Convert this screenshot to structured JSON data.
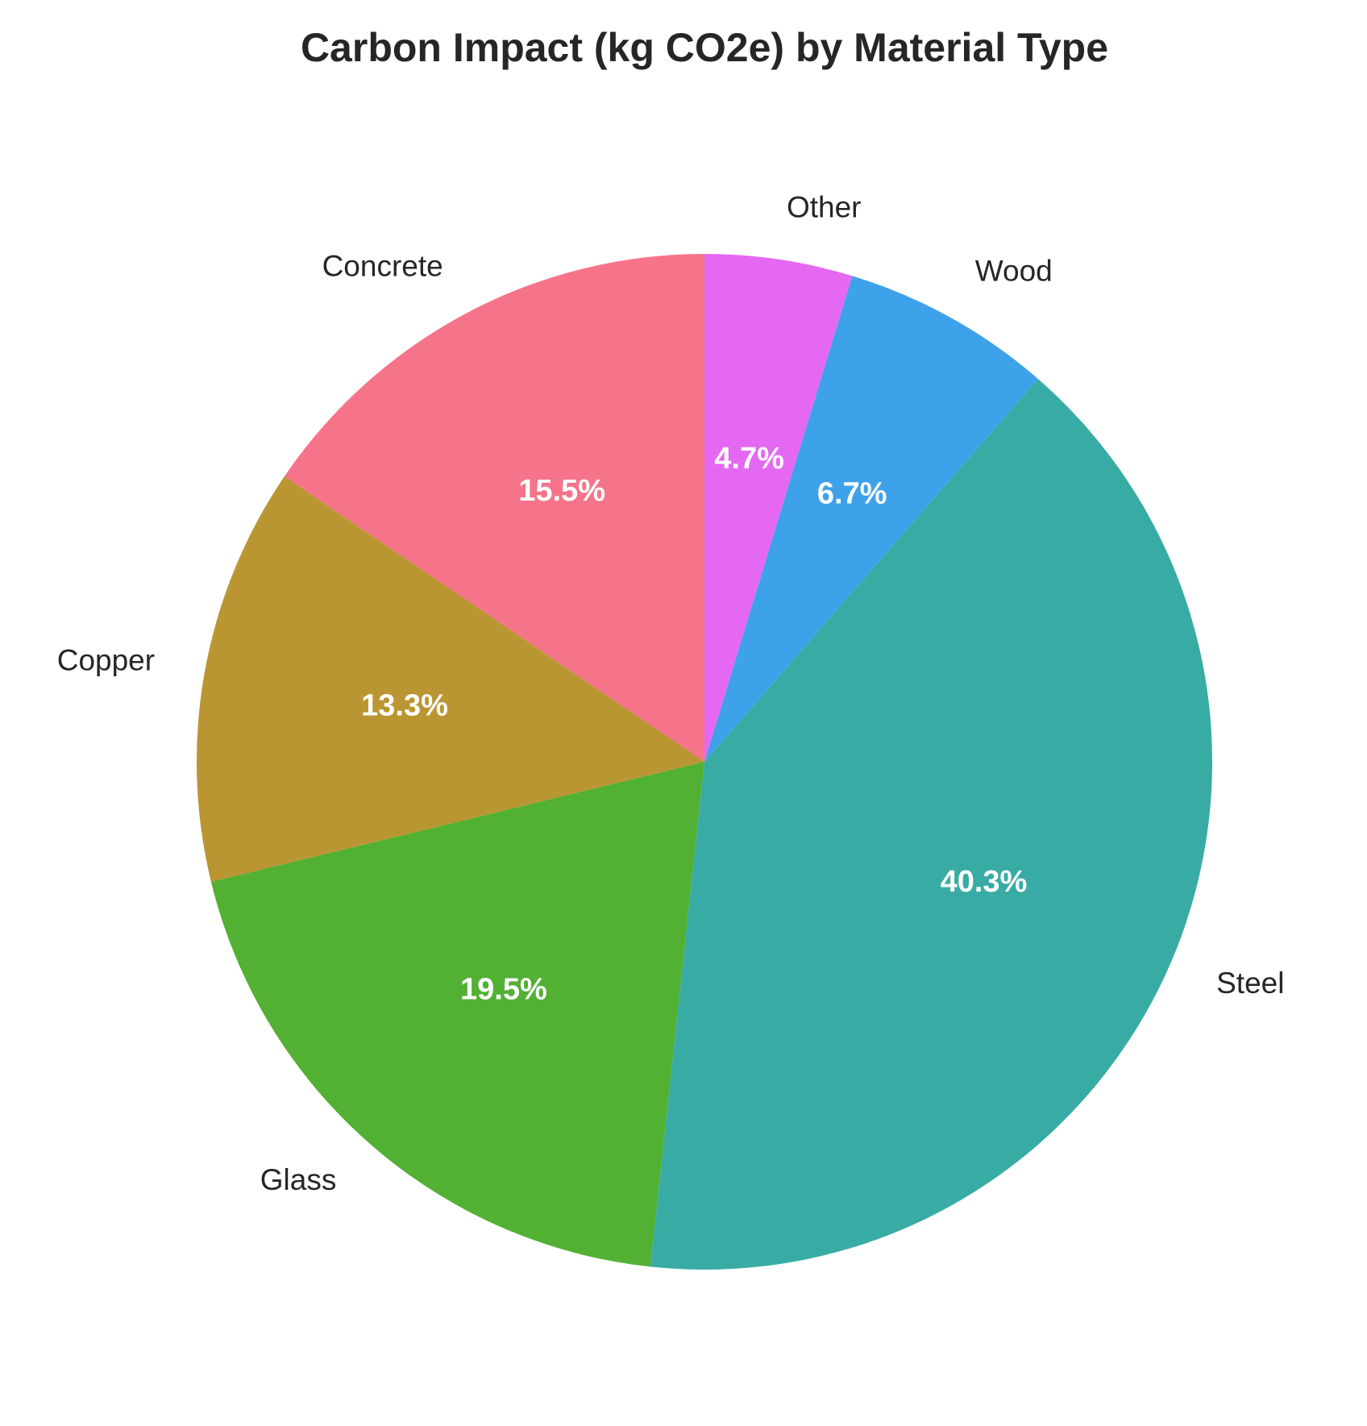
{
  "chart_data": {
    "type": "pie",
    "title": "Carbon Impact (kg CO2e) by Material Type",
    "start_angle": "top, counter-clockwise",
    "labels": [
      "Concrete",
      "Copper",
      "Glass",
      "Steel",
      "Wood",
      "Other"
    ],
    "values": [
      15.5,
      13.3,
      19.5,
      40.3,
      6.7,
      4.7
    ],
    "pct_labels": [
      "15.5%",
      "13.3%",
      "19.5%",
      "40.3%",
      "6.7%",
      "4.7%"
    ],
    "colors": [
      "#f57489",
      "#ba9633",
      "#52b033",
      "#38ac a4",
      "#3ea2ea",
      "#e468f2"
    ],
    "legend": "none"
  }
}
